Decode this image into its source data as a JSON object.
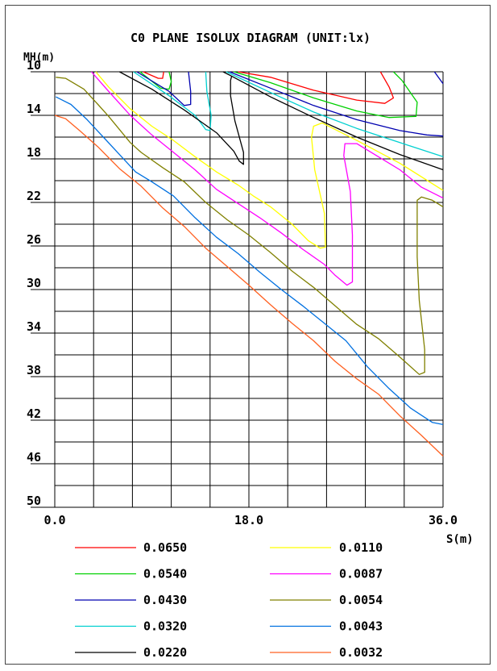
{
  "chart_data": {
    "type": "line",
    "title": "C0 PLANE ISOLUX DIAGRAM (UNIT:lx)",
    "xlabel": "S(m)",
    "ylabel": "MH(m)",
    "xlim": [
      0,
      36
    ],
    "ylim": [
      10,
      50
    ],
    "y_inverted": true,
    "grid": true,
    "x_ticks": [
      "0.0",
      "18.0",
      "36.0"
    ],
    "y_ticks": [
      "10",
      "14",
      "18",
      "22",
      "26",
      "30",
      "34",
      "38",
      "42",
      "46",
      "50"
    ],
    "legend_placement": "bottom",
    "series": [
      {
        "name": "0.0650",
        "color": "#ff0000",
        "segments": [
          [
            [
              8.2,
              10
            ],
            [
              9.6,
              10.6
            ],
            [
              10,
              10.6
            ],
            [
              10.1,
              10
            ]
          ],
          [
            [
              17,
              10
            ],
            [
              20,
              10.5
            ],
            [
              24,
              11.7
            ],
            [
              28,
              12.6
            ],
            [
              30.6,
              12.9
            ],
            [
              31.4,
              12.4
            ],
            [
              31,
              11.4
            ],
            [
              30.2,
              10
            ]
          ]
        ]
      },
      {
        "name": "0.0540",
        "color": "#00d000",
        "segments": [
          [
            [
              7.9,
              10
            ],
            [
              9.8,
              11.5
            ],
            [
              10.6,
              11.6
            ],
            [
              10.8,
              10.9
            ],
            [
              10.6,
              10
            ]
          ],
          [
            [
              16.6,
              10
            ],
            [
              20,
              11
            ],
            [
              24,
              12.4
            ],
            [
              28,
              13.6
            ],
            [
              31,
              14.2
            ],
            [
              33.5,
              14.1
            ],
            [
              33.6,
              12.8
            ],
            [
              32.2,
              10.8
            ],
            [
              31.4,
              10
            ]
          ]
        ]
      },
      {
        "name": "0.0430",
        "color": "#0000b0",
        "segments": [
          [
            [
              7.6,
              10
            ],
            [
              10.6,
              11.8
            ],
            [
              12,
              13.1
            ],
            [
              12.6,
              13
            ],
            [
              12.6,
              11.8
            ],
            [
              12.4,
              10
            ]
          ],
          [
            [
              16.2,
              10
            ],
            [
              20,
              11.5
            ],
            [
              24,
              13.1
            ],
            [
              28,
              14.4
            ],
            [
              32,
              15.4
            ],
            [
              34.5,
              15.8
            ],
            [
              36,
              15.9
            ]
          ],
          [
            [
              35.2,
              10
            ],
            [
              36,
              11.1
            ]
          ]
        ]
      },
      {
        "name": "0.0320",
        "color": "#00d0d0",
        "segments": [
          [
            [
              7.3,
              10
            ],
            [
              10.6,
              12.2
            ],
            [
              13,
              14
            ],
            [
              14,
              15.3
            ],
            [
              14.4,
              15.4
            ],
            [
              14.5,
              14
            ],
            [
              14.1,
              11.8
            ],
            [
              14,
              10
            ]
          ],
          [
            [
              15.9,
              10
            ],
            [
              20,
              11.9
            ],
            [
              24,
              13.7
            ],
            [
              28,
              15.2
            ],
            [
              32,
              16.5
            ],
            [
              36,
              17.8
            ]
          ]
        ]
      },
      {
        "name": "0.0220",
        "color": "#000000",
        "segments": [
          [
            [
              6,
              10
            ],
            [
              9,
              11.6
            ],
            [
              12,
              13.5
            ],
            [
              15,
              15.6
            ],
            [
              16.6,
              17.3
            ],
            [
              17.1,
              18.2
            ],
            [
              17.5,
              18.5
            ],
            [
              17.5,
              17.4
            ],
            [
              16.7,
              14.5
            ],
            [
              16.3,
              12.2
            ],
            [
              16.3,
              10.8
            ],
            [
              16.4,
              10.4
            ],
            [
              15.6,
              10
            ]
          ],
          [
            [
              16.4,
              10.4
            ],
            [
              20,
              12.3
            ],
            [
              24,
              14.2
            ],
            [
              28,
              16
            ],
            [
              32,
              17.6
            ],
            [
              36,
              19
            ]
          ]
        ]
      },
      {
        "name": "0.0110",
        "color": "#ffff00",
        "segments": [
          [
            [
              3.8,
              10
            ],
            [
              5,
              11.4
            ],
            [
              7,
              13.4
            ],
            [
              9,
              15
            ],
            [
              11,
              16.3
            ],
            [
              13,
              17.8
            ],
            [
              15,
              19.2
            ],
            [
              17,
              20.4
            ],
            [
              18.4,
              21.4
            ],
            [
              20,
              22.4
            ],
            [
              22,
              24
            ],
            [
              23.5,
              25.5
            ],
            [
              24.6,
              26.2
            ],
            [
              25.1,
              26.1
            ],
            [
              25,
              23
            ],
            [
              24.1,
              19
            ],
            [
              23.8,
              16
            ],
            [
              24,
              15
            ],
            [
              24.8,
              14.7
            ],
            [
              28,
              16.3
            ],
            [
              32,
              18.4
            ],
            [
              36,
              20.9
            ]
          ]
        ]
      },
      {
        "name": "0.0087",
        "color": "#ff00ff",
        "segments": [
          [
            [
              3.4,
              10
            ],
            [
              5,
              11.8
            ],
            [
              7,
              14
            ],
            [
              9,
              15.8
            ],
            [
              11,
              17.4
            ],
            [
              13,
              19
            ],
            [
              15,
              20.8
            ],
            [
              17,
              22.1
            ],
            [
              19,
              23.4
            ],
            [
              21,
              24.8
            ],
            [
              23,
              26.3
            ],
            [
              25,
              27.7
            ],
            [
              26,
              28.7
            ],
            [
              27.1,
              29.6
            ],
            [
              27.6,
              29.3
            ],
            [
              27.6,
              25
            ],
            [
              27.4,
              21
            ],
            [
              26.8,
              17.7
            ],
            [
              26.9,
              16.6
            ],
            [
              28,
              16.6
            ],
            [
              30,
              17.8
            ],
            [
              32,
              19
            ],
            [
              34,
              20.6
            ],
            [
              36,
              21.6
            ]
          ]
        ]
      },
      {
        "name": "0.0054",
        "color": "#808000",
        "segments": [
          [
            [
              0.1,
              10.5
            ],
            [
              1,
              10.6
            ],
            [
              2.7,
              11.6
            ],
            [
              4,
              13
            ],
            [
              5,
              14.1
            ],
            [
              6,
              15.3
            ],
            [
              7,
              16.5
            ],
            [
              8,
              17.4
            ],
            [
              10,
              18.8
            ],
            [
              12,
              20.1
            ],
            [
              14,
              22
            ],
            [
              16,
              23.6
            ],
            [
              18,
              25
            ],
            [
              20,
              26.6
            ],
            [
              22,
              28.3
            ],
            [
              24,
              29.8
            ],
            [
              26,
              31.5
            ],
            [
              28,
              33.2
            ],
            [
              30,
              34.5
            ],
            [
              32,
              36.2
            ],
            [
              33.8,
              37.8
            ],
            [
              34.3,
              37.6
            ],
            [
              34.3,
              35.5
            ],
            [
              33.8,
              31
            ],
            [
              33.6,
              27
            ],
            [
              33.6,
              23.6
            ],
            [
              33.6,
              21.8
            ],
            [
              34,
              21.5
            ],
            [
              35,
              21.8
            ],
            [
              36,
              22.4
            ]
          ]
        ]
      },
      {
        "name": "0.0043",
        "color": "#0070e0",
        "segments": [
          [
            [
              0.1,
              12.3
            ],
            [
              1.5,
              13
            ],
            [
              3,
              14.4
            ],
            [
              4.5,
              16
            ],
            [
              6,
              17.6
            ],
            [
              7.5,
              19.2
            ],
            [
              9,
              20.1
            ],
            [
              11,
              21.4
            ],
            [
              13,
              23.4
            ],
            [
              15,
              25.2
            ],
            [
              17,
              26.7
            ],
            [
              19,
              28.4
            ],
            [
              21,
              30
            ],
            [
              23,
              31.5
            ],
            [
              25,
              33.1
            ],
            [
              27,
              34.7
            ],
            [
              29,
              37.1
            ],
            [
              31,
              39.1
            ],
            [
              33,
              40.9
            ],
            [
              35,
              42.2
            ],
            [
              36,
              42.4
            ]
          ]
        ]
      },
      {
        "name": "0.0032",
        "color": "#ff6020",
        "segments": [
          [
            [
              0,
              14
            ],
            [
              1,
              14.3
            ],
            [
              2.3,
              15.4
            ],
            [
              4,
              16.9
            ],
            [
              6,
              18.9
            ],
            [
              8,
              20.5
            ],
            [
              10,
              22.5
            ],
            [
              12,
              24.2
            ],
            [
              14,
              26.2
            ],
            [
              16,
              27.9
            ],
            [
              18,
              29.6
            ],
            [
              20,
              31.4
            ],
            [
              22,
              33.1
            ],
            [
              24,
              34.7
            ],
            [
              26,
              36.6
            ],
            [
              28,
              38.2
            ],
            [
              30,
              39.6
            ],
            [
              32,
              41.6
            ],
            [
              34,
              43.4
            ],
            [
              36,
              45.3
            ]
          ]
        ]
      }
    ]
  }
}
